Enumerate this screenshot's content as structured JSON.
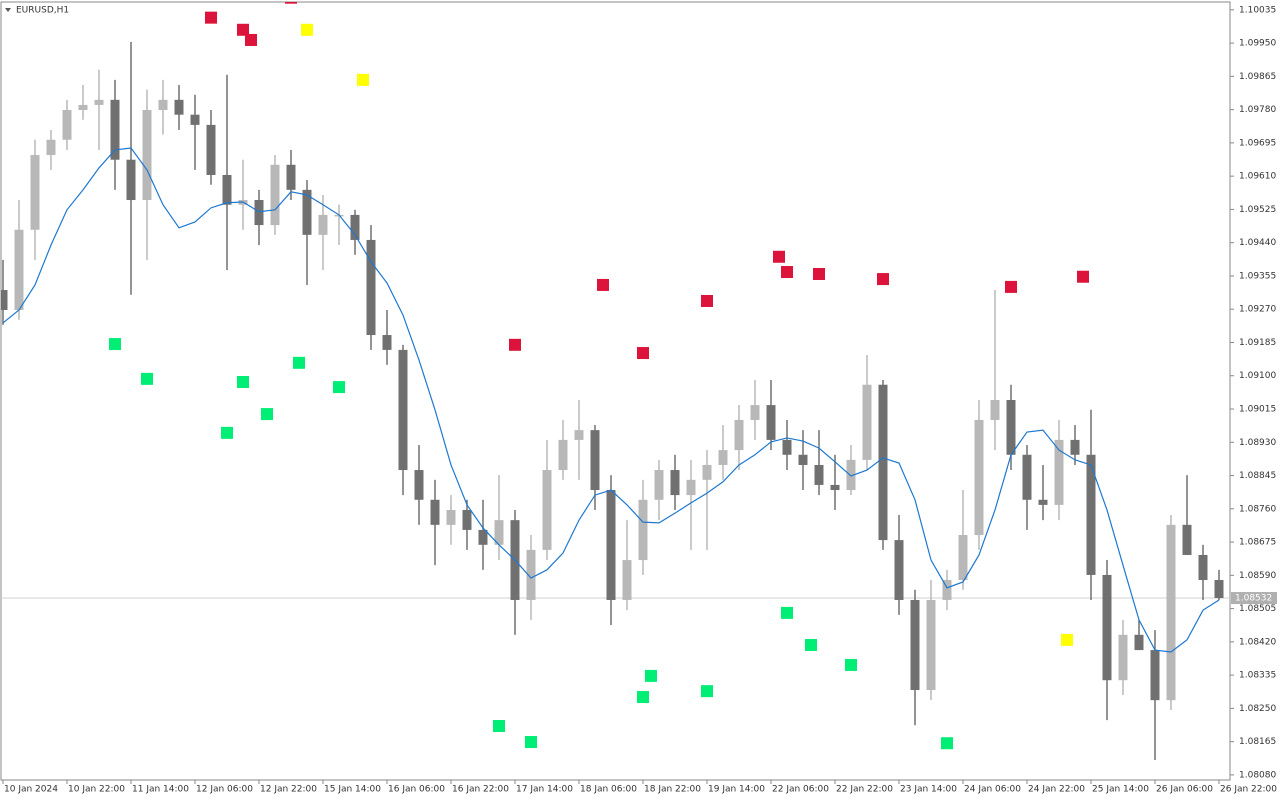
{
  "chart_data": {
    "type": "candlestick",
    "title": "EURUSD,H1",
    "up_color": "#b8b8b8",
    "down_color": "#707070",
    "categories": [
      "10 Jan 2024",
      null,
      null,
      null,
      "10 Jan 22:00",
      null,
      null,
      null,
      "11 Jan 14:00",
      null,
      null,
      null,
      "12 Jan 06:00",
      null,
      null,
      null,
      "12 Jan 22:00",
      null,
      null,
      null,
      "15 Jan 14:00",
      null,
      null,
      null,
      "16 Jan 06:00",
      null,
      null,
      null,
      "16 Jan 22:00",
      null,
      null,
      null,
      "17 Jan 14:00",
      null,
      null,
      null,
      "18 Jan 06:00",
      null,
      null,
      null,
      "18 Jan 22:00",
      null,
      null,
      null,
      "19 Jan 14:00",
      null,
      null,
      null,
      "22 Jan 06:00",
      null,
      null,
      null,
      "22 Jan 22:00",
      null,
      null,
      null,
      "23 Jan 14:00",
      null,
      null,
      null,
      "24 Jan 06:00",
      null,
      null,
      null,
      "24 Jan 22:00",
      null,
      null,
      null,
      "25 Jan 14:00",
      null,
      null,
      null,
      "26 Jan 06:00",
      null,
      null,
      null,
      "26 Jan 22:00"
    ],
    "ohlc": [
      [
        1.09319,
        1.09396,
        1.0923,
        1.09268
      ],
      [
        1.09268,
        1.09549,
        1.09243,
        1.09473
      ],
      [
        1.09473,
        1.09703,
        1.09396,
        1.09664
      ],
      [
        1.09664,
        1.09728,
        1.09626,
        1.09703
      ],
      [
        1.09703,
        1.09805,
        1.09677,
        1.09779
      ],
      [
        1.09779,
        1.09843,
        1.09754,
        1.09792
      ],
      [
        1.09792,
        1.09882,
        1.09677,
        1.09805
      ],
      [
        1.09805,
        1.09856,
        1.09575,
        1.09652
      ],
      [
        1.09652,
        1.09953,
        1.09307,
        1.09549
      ],
      [
        1.09549,
        1.09831,
        1.09396,
        1.09779
      ],
      [
        1.09779,
        1.09856,
        1.09716,
        1.09805
      ],
      [
        1.09805,
        1.09843,
        1.09728,
        1.09767
      ],
      [
        1.09767,
        1.09818,
        1.09626,
        1.09741
      ],
      [
        1.09741,
        1.09779,
        1.09588,
        1.09613
      ],
      [
        1.09613,
        1.09869,
        1.0937,
        1.09537
      ],
      [
        1.09537,
        1.09652,
        1.09473,
        1.09549
      ],
      [
        1.09549,
        1.09575,
        1.09434,
        1.09485
      ],
      [
        1.09485,
        1.09664,
        1.0946,
        1.09639
      ],
      [
        1.09639,
        1.09677,
        1.09549,
        1.09575
      ],
      [
        1.09575,
        1.096,
        1.09332,
        1.0946
      ],
      [
        1.0946,
        1.09562,
        1.0937,
        1.09511
      ],
      [
        1.09511,
        1.09537,
        1.09434,
        1.09511
      ],
      [
        1.09511,
        1.09524,
        1.09409,
        1.09447
      ],
      [
        1.09447,
        1.09485,
        1.09166,
        1.09204
      ],
      [
        1.09204,
        1.09268,
        1.09128,
        1.09166
      ],
      [
        1.09166,
        1.09179,
        1.08795,
        1.08859
      ],
      [
        1.08859,
        1.08923,
        1.08719,
        1.08783
      ],
      [
        1.08783,
        1.08834,
        1.08616,
        1.08719
      ],
      [
        1.08719,
        1.08795,
        1.08668,
        1.08757
      ],
      [
        1.08757,
        1.08783,
        1.08655,
        1.08706
      ],
      [
        1.08706,
        1.08783,
        1.08604,
        1.08668
      ],
      [
        1.08668,
        1.08846,
        1.08629,
        1.08731
      ],
      [
        1.08731,
        1.08757,
        1.08438,
        1.08527
      ],
      [
        1.08527,
        1.08693,
        1.08476,
        1.08655
      ],
      [
        1.08655,
        1.08936,
        1.08629,
        1.08859
      ],
      [
        1.08859,
        1.08987,
        1.08834,
        1.08936
      ],
      [
        1.08936,
        1.09038,
        1.08834,
        1.08961
      ],
      [
        1.08961,
        1.08974,
        1.08757,
        1.08808
      ],
      [
        1.08808,
        1.08846,
        1.08463,
        1.08527
      ],
      [
        1.08527,
        1.08731,
        1.08501,
        1.08629
      ],
      [
        1.08629,
        1.08834,
        1.08591,
        1.08783
      ],
      [
        1.08783,
        1.08885,
        1.08731,
        1.08859
      ],
      [
        1.08859,
        1.08898,
        1.08757,
        1.08795
      ],
      [
        1.08795,
        1.08885,
        1.08655,
        1.08834
      ],
      [
        1.08834,
        1.0891,
        1.08655,
        1.08872
      ],
      [
        1.08872,
        1.08974,
        1.08834,
        1.0891
      ],
      [
        1.0891,
        1.09025,
        1.08859,
        1.08987
      ],
      [
        1.08987,
        1.09089,
        1.08936,
        1.09025
      ],
      [
        1.09025,
        1.09089,
        1.0891,
        1.08936
      ],
      [
        1.08936,
        1.08987,
        1.08859,
        1.08898
      ],
      [
        1.08898,
        1.08961,
        1.08808,
        1.08872
      ],
      [
        1.08872,
        1.08961,
        1.08795,
        1.08821
      ],
      [
        1.08821,
        1.08898,
        1.08757,
        1.08808
      ],
      [
        1.08808,
        1.08923,
        1.08795,
        1.08885
      ],
      [
        1.08885,
        1.09153,
        1.08859,
        1.09077
      ],
      [
        1.09077,
        1.09089,
        1.08655,
        1.0868
      ],
      [
        1.0868,
        1.08744,
        1.08489,
        1.08527
      ],
      [
        1.08527,
        1.08553,
        1.08207,
        1.08297
      ],
      [
        1.08297,
        1.08578,
        1.08271,
        1.08527
      ],
      [
        1.08527,
        1.08604,
        1.08501,
        1.08578
      ],
      [
        1.08578,
        1.08808,
        1.08553,
        1.08693
      ],
      [
        1.08693,
        1.09038,
        1.08655,
        1.08987
      ],
      [
        1.08987,
        1.09319,
        1.0891,
        1.09038
      ],
      [
        1.09038,
        1.09077,
        1.08859,
        1.08898
      ],
      [
        1.08898,
        1.08923,
        1.08706,
        1.08783
      ],
      [
        1.08783,
        1.08872,
        1.08731,
        1.0877
      ],
      [
        1.0877,
        1.08987,
        1.08731,
        1.08936
      ],
      [
        1.08936,
        1.08974,
        1.08872,
        1.08898
      ],
      [
        1.08898,
        1.09013,
        1.08527,
        1.08591
      ],
      [
        1.08591,
        1.08629,
        1.0822,
        1.08322
      ],
      [
        1.08322,
        1.08476,
        1.08284,
        1.08438
      ],
      [
        1.08438,
        1.08476,
        1.08399,
        1.08399
      ],
      [
        1.08399,
        1.0845,
        1.08118,
        1.08271
      ],
      [
        1.08271,
        1.08744,
        1.08246,
        1.08719
      ],
      [
        1.08719,
        1.08846,
        1.08642,
        1.08642
      ],
      [
        1.08642,
        1.08668,
        1.08527,
        1.08578
      ],
      [
        1.08578,
        1.08604,
        1.08527,
        1.08532
      ]
    ],
    "ma": {
      "color": "#1e78d0",
      "values": [
        1.09235,
        1.09268,
        1.09332,
        1.09434,
        1.09524,
        1.09575,
        1.09631,
        1.09677,
        1.09682,
        1.09626,
        1.09537,
        1.09478,
        1.09493,
        1.09529,
        1.09542,
        1.09544,
        1.09519,
        1.09524,
        1.0957,
        1.09562,
        1.09537,
        1.09511,
        1.0946,
        1.09391,
        1.09337,
        1.09255,
        1.0914,
        1.09013,
        1.08872,
        1.0877,
        1.08711,
        1.08668,
        1.08629,
        1.08583,
        1.08604,
        1.08647,
        1.08731,
        1.08795,
        1.08808,
        1.0877,
        1.08726,
        1.08724,
        1.08749,
        1.08775,
        1.088,
        1.08829,
        1.08872,
        1.08898,
        1.08931,
        1.08941,
        1.08933,
        1.08915,
        1.0888,
        1.08844,
        1.08859,
        1.0889,
        1.08877,
        1.08783,
        1.08629,
        1.08558,
        1.08573,
        1.08642,
        1.08757,
        1.08898,
        1.08956,
        1.08961,
        1.0891,
        1.08885,
        1.08872,
        1.08757,
        1.08616,
        1.08476,
        1.08399,
        1.08394,
        1.08425,
        1.08501,
        1.08527
      ]
    },
    "signals": [
      {
        "color": "#dc143c",
        "x": [
          13,
          15,
          15.5,
          18,
          32,
          37.5,
          40,
          44,
          48.5,
          49,
          51,
          55,
          63,
          67.5
        ],
        "values": [
          1.10015,
          1.09984,
          1.09958,
          1.10066,
          1.09179,
          1.09332,
          1.09158,
          1.09291,
          1.09404,
          1.09365,
          1.0936,
          1.09347,
          1.09327,
          1.09353
        ]
      },
      {
        "color": "#ffff00",
        "x": [
          19,
          22.5,
          66.5
        ],
        "values": [
          1.09984,
          1.09856,
          1.08425
        ]
      },
      {
        "color": "#00ee76",
        "x": [
          7,
          9,
          14,
          15,
          16.5,
          18.5,
          21,
          31,
          33,
          40,
          40.5,
          44,
          49,
          50.5,
          53,
          59
        ],
        "values": [
          1.09181,
          1.09092,
          1.08954,
          1.09084,
          1.09002,
          1.09133,
          1.09071,
          1.08205,
          1.08164,
          1.08279,
          1.08333,
          1.08294,
          1.08494,
          1.08412,
          1.08361,
          1.08161
        ]
      }
    ],
    "last_price": {
      "value": 1.08532,
      "label": "1.08532"
    },
    "ylim": [
      1.08067,
      1.10055
    ],
    "yticks": [
      1.10035,
      {
        "value": 1.0995,
        "label": "1.09950"
      },
      1.09865,
      {
        "value": 1.0978,
        "label": "1.09780"
      },
      1.09695,
      {
        "value": 1.0961,
        "label": "1.09610"
      },
      1.09525,
      {
        "value": 1.0944,
        "label": "1.09440"
      },
      1.09355,
      {
        "value": 1.0927,
        "label": "1.09270"
      },
      1.09185,
      {
        "value": 1.091,
        "label": "1.09100"
      },
      1.09015,
      {
        "value": 1.0893,
        "label": "1.08930"
      },
      1.08845,
      {
        "value": 1.0876,
        "label": "1.08760"
      },
      1.08675,
      {
        "value": 1.0859,
        "label": "1.08590"
      },
      1.08505,
      {
        "value": 1.0842,
        "label": "1.08420"
      },
      1.08335,
      {
        "value": 1.0825,
        "label": "1.08250"
      },
      1.08165,
      {
        "value": 1.0808,
        "label": "1.08080"
      }
    ]
  }
}
